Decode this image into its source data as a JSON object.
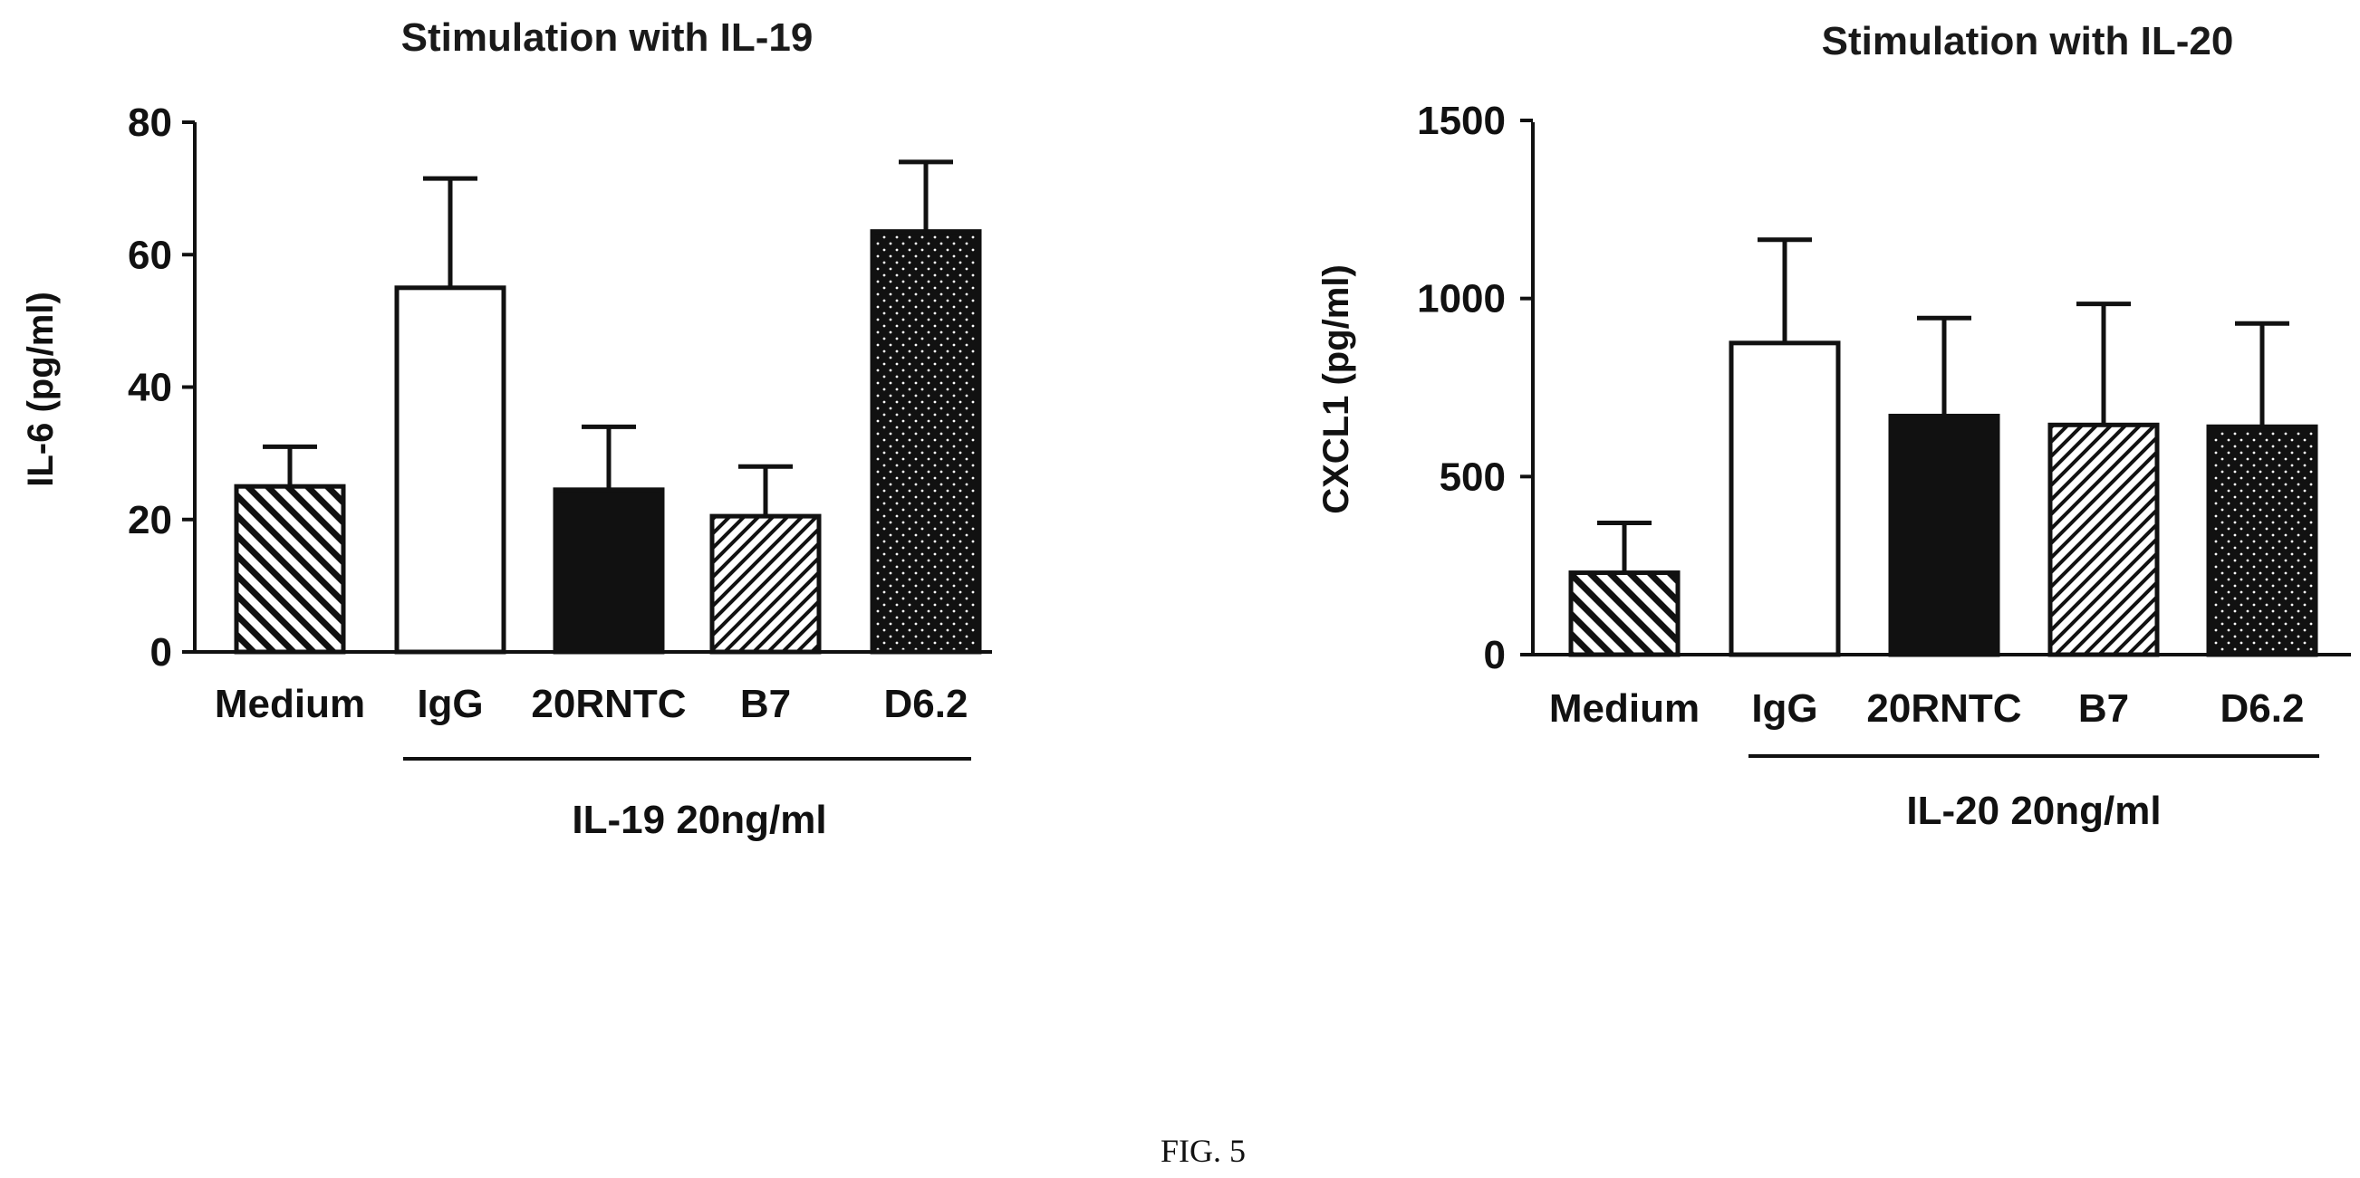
{
  "chart_data": [
    {
      "type": "bar",
      "title": "Stimulation with IL-19",
      "ylabel": "IL-6 (pg/ml)",
      "xlabel": "",
      "ylim": [
        0,
        80
      ],
      "yticks": [
        0,
        20,
        40,
        60,
        80
      ],
      "categories": [
        "Medium",
        "IgG",
        "20RNTC",
        "B7",
        "D6.2"
      ],
      "values": [
        25,
        55,
        24.5,
        20.5,
        63.5
      ],
      "errors": [
        6,
        16.5,
        9.5,
        7.5,
        10.5
      ],
      "fills": [
        "hatch-down",
        "white",
        "black",
        "hatch-up",
        "dots"
      ],
      "group_label": "IL-19 20ng/ml",
      "group_start_index": 1,
      "grid": false,
      "legend": "none"
    },
    {
      "type": "bar",
      "title": "Stimulation with IL-20",
      "ylabel": "CXCL1 (pg/ml)",
      "xlabel": "",
      "ylim": [
        0,
        1500
      ],
      "yticks": [
        0,
        500,
        1000,
        1500
      ],
      "categories": [
        "Medium",
        "IgG",
        "20RNTC",
        "B7",
        "D6.2"
      ],
      "values": [
        230,
        875,
        670,
        645,
        640
      ],
      "errors": [
        140,
        290,
        275,
        340,
        290
      ],
      "fills": [
        "hatch-down",
        "white",
        "black",
        "hatch-up",
        "dots"
      ],
      "group_label": "IL-20 20ng/ml",
      "group_start_index": 1,
      "grid": false,
      "legend": "none"
    }
  ],
  "caption": "FIG. 5"
}
